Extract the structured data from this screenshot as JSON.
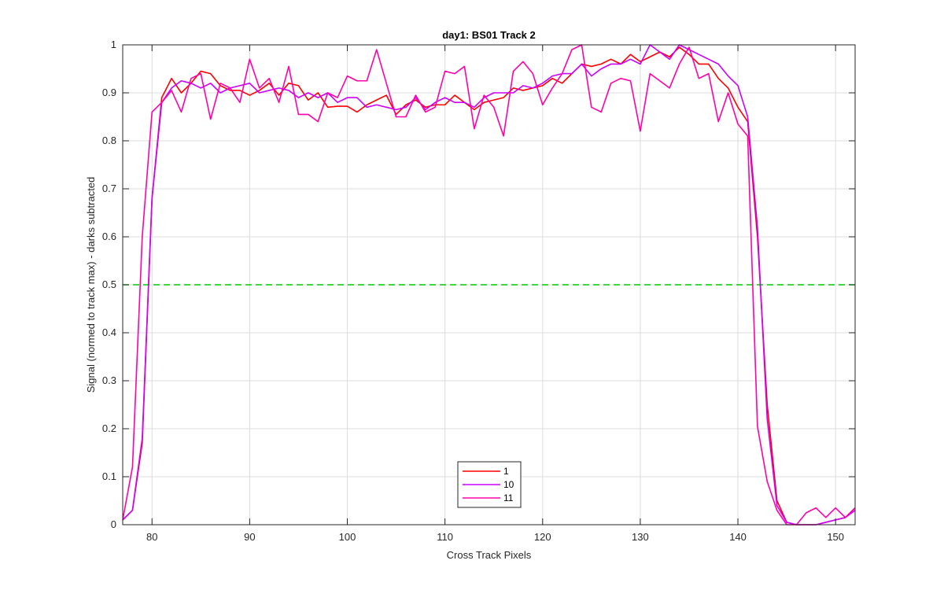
{
  "chart_data": {
    "type": "line",
    "title": "day1: BS01  Track 2",
    "xlabel": "Cross Track Pixels",
    "ylabel": "Signal (normed to track max) - darks subtracted",
    "xlim": [
      77,
      152
    ],
    "ylim": [
      0,
      1
    ],
    "xticks": [
      80,
      90,
      100,
      110,
      120,
      130,
      140,
      150
    ],
    "yticks": [
      0,
      0.1,
      0.2,
      0.3,
      0.4,
      0.5,
      0.6,
      0.7,
      0.8,
      0.9,
      1
    ],
    "xtick_labels": [
      "80",
      "90",
      "100",
      "110",
      "120",
      "130",
      "140",
      "150"
    ],
    "ytick_labels": [
      "0",
      "0.1",
      "0.2",
      "0.3",
      "0.4",
      "0.5",
      "0.6",
      "0.7",
      "0.8",
      "0.9",
      "1"
    ],
    "grid": true,
    "legend_position": "bottom-center",
    "x": [
      77,
      78,
      79,
      80,
      81,
      82,
      83,
      84,
      85,
      86,
      87,
      88,
      89,
      90,
      91,
      92,
      93,
      94,
      95,
      96,
      97,
      98,
      99,
      100,
      101,
      102,
      103,
      104,
      105,
      106,
      107,
      108,
      109,
      110,
      111,
      112,
      113,
      114,
      115,
      116,
      117,
      118,
      119,
      120,
      121,
      122,
      123,
      124,
      125,
      126,
      127,
      128,
      129,
      130,
      131,
      132,
      133,
      134,
      135,
      136,
      137,
      138,
      139,
      140,
      141,
      142,
      143,
      144,
      145,
      146,
      147,
      148,
      149,
      150,
      151,
      152
    ],
    "series": [
      {
        "name": "1",
        "color": "#ff0000",
        "values": [
          0.01,
          0.03,
          0.17,
          0.68,
          0.89,
          0.93,
          0.9,
          0.92,
          0.945,
          0.94,
          0.915,
          0.905,
          0.905,
          0.895,
          0.905,
          0.92,
          0.895,
          0.92,
          0.915,
          0.885,
          0.9,
          0.87,
          0.872,
          0.872,
          0.86,
          0.875,
          0.885,
          0.895,
          0.855,
          0.875,
          0.885,
          0.87,
          0.875,
          0.875,
          0.895,
          0.88,
          0.865,
          0.88,
          0.885,
          0.89,
          0.91,
          0.905,
          0.91,
          0.915,
          0.93,
          0.92,
          0.94,
          0.96,
          0.955,
          0.96,
          0.97,
          0.96,
          0.98,
          0.965,
          0.975,
          0.985,
          0.975,
          0.995,
          0.98,
          0.96,
          0.96,
          0.93,
          0.91,
          0.87,
          0.84,
          0.6,
          0.25,
          0.05,
          0.005,
          0.0,
          0.0,
          0.0,
          0.005,
          0.01,
          0.015,
          0.035
        ]
      },
      {
        "name": "10",
        "color": "#cc00ff",
        "values": [
          0.01,
          0.03,
          0.18,
          0.68,
          0.88,
          0.91,
          0.925,
          0.92,
          0.91,
          0.92,
          0.9,
          0.91,
          0.915,
          0.92,
          0.9,
          0.905,
          0.91,
          0.905,
          0.89,
          0.9,
          0.89,
          0.9,
          0.88,
          0.89,
          0.89,
          0.87,
          0.875,
          0.87,
          0.865,
          0.87,
          0.89,
          0.865,
          0.88,
          0.89,
          0.88,
          0.88,
          0.87,
          0.89,
          0.9,
          0.9,
          0.9,
          0.915,
          0.91,
          0.92,
          0.935,
          0.94,
          0.94,
          0.96,
          0.935,
          0.95,
          0.96,
          0.96,
          0.97,
          0.96,
          1.0,
          0.985,
          0.97,
          1.0,
          0.99,
          0.98,
          0.97,
          0.96,
          0.935,
          0.915,
          0.85,
          0.62,
          0.22,
          0.04,
          0.005,
          0.0,
          0.0,
          0.0,
          0.005,
          0.01,
          0.015,
          0.03
        ]
      },
      {
        "name": "11",
        "color": "#ff00aa",
        "values": [
          0.01,
          0.12,
          0.6,
          0.86,
          0.88,
          0.905,
          0.86,
          0.93,
          0.94,
          0.845,
          0.92,
          0.91,
          0.88,
          0.97,
          0.91,
          0.93,
          0.88,
          0.955,
          0.855,
          0.855,
          0.84,
          0.9,
          0.89,
          0.935,
          0.925,
          0.925,
          0.99,
          0.92,
          0.85,
          0.85,
          0.895,
          0.86,
          0.87,
          0.945,
          0.94,
          0.955,
          0.825,
          0.895,
          0.87,
          0.81,
          0.945,
          0.965,
          0.94,
          0.875,
          0.91,
          0.94,
          0.99,
          1.0,
          0.87,
          0.86,
          0.92,
          0.93,
          0.925,
          0.82,
          0.94,
          0.925,
          0.91,
          0.96,
          0.995,
          0.93,
          0.94,
          0.84,
          0.9,
          0.835,
          0.81,
          0.205,
          0.09,
          0.03,
          0.0,
          0.0,
          0.025,
          0.035,
          0.015,
          0.035,
          0.015,
          0.035
        ]
      }
    ],
    "reference_line": {
      "y": 0.5,
      "style": "dashed",
      "color": "#00cc00"
    }
  }
}
